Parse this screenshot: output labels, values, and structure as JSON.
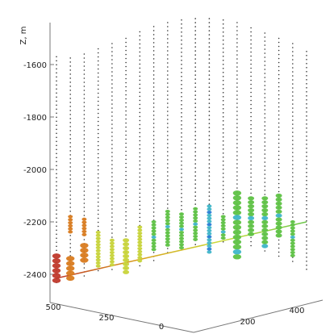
{
  "chart_data": {
    "type": "scatter",
    "dimensions": "3d",
    "zlabel": "Z, m",
    "z_ticks": [
      -2400,
      -2200,
      -2000,
      -1800,
      -1600
    ],
    "zlim": [
      -2480,
      -1420
    ],
    "left_axis_ticks": [
      500,
      250,
      0
    ],
    "right_axis_ticks": [
      200,
      400
    ],
    "grid": false,
    "legend": "none",
    "trend_line": {
      "from_z": -2415,
      "to_z": -2200,
      "colors": [
        "#c0392b",
        "#d9a01a",
        "#c9dc3a",
        "#6ac64a"
      ]
    },
    "colors": {
      "well_dots": "#333333",
      "red": "#c0392b",
      "orange": "#d97b1f",
      "yellow": "#c8d43a",
      "green": "#5ec244",
      "cyan": "#3fb6c9",
      "blue": "#2a7fd6"
    },
    "wells": [
      {
        "top": -1570,
        "bottom": -2440
      },
      {
        "top": -1575,
        "bottom": -2430
      },
      {
        "top": -1560,
        "bottom": -2420
      },
      {
        "top": -1540,
        "bottom": -2400
      },
      {
        "top": -1520,
        "bottom": -2390
      },
      {
        "top": -1500,
        "bottom": -2380
      },
      {
        "top": -1475,
        "bottom": -2370
      },
      {
        "top": -1455,
        "bottom": -2350
      },
      {
        "top": -1440,
        "bottom": -2330
      },
      {
        "top": -1430,
        "bottom": -2320
      },
      {
        "top": -1425,
        "bottom": -2300
      },
      {
        "top": -1425,
        "bottom": -2290
      },
      {
        "top": -1430,
        "bottom": -2290
      },
      {
        "top": -1440,
        "bottom": -2290
      },
      {
        "top": -1460,
        "bottom": -2300
      },
      {
        "top": -1480,
        "bottom": -2320
      },
      {
        "top": -1500,
        "bottom": -2340
      },
      {
        "top": -1520,
        "bottom": -2360
      },
      {
        "top": -1550,
        "bottom": -2390
      }
    ],
    "clusters": [
      {
        "well": 0,
        "z_from": -2330,
        "z_to": -2430,
        "color": "red",
        "size": "large"
      },
      {
        "well": 1,
        "z_from": -2180,
        "z_to": -2240,
        "color": "orange",
        "size": "small"
      },
      {
        "well": 1,
        "z_from": -2340,
        "z_to": -2420,
        "color": "orange",
        "size": "large"
      },
      {
        "well": 2,
        "z_from": -2190,
        "z_to": -2260,
        "color": "orange",
        "size": "small"
      },
      {
        "well": 2,
        "z_from": -2290,
        "z_to": -2360,
        "color": "orange",
        "size": "large"
      },
      {
        "well": 3,
        "z_from": -2240,
        "z_to": -2380,
        "color": "yellow",
        "size": "small"
      },
      {
        "well": 4,
        "z_from": -2270,
        "z_to": -2370,
        "color": "yellow",
        "size": "small"
      },
      {
        "well": 5,
        "z_from": -2270,
        "z_to": -2400,
        "color": "yellow",
        "size": "medium"
      },
      {
        "well": 6,
        "z_from": -2220,
        "z_to": -2360,
        "color": "yellow",
        "size": "small"
      },
      {
        "well": 7,
        "z_from": -2200,
        "z_to": -2310,
        "color": "green",
        "size": "small"
      },
      {
        "well": 8,
        "z_from": -2160,
        "z_to": -2290,
        "color": "green",
        "size": "small"
      },
      {
        "well": 9,
        "z_from": -2170,
        "z_to": -2300,
        "color": "green",
        "size": "small"
      },
      {
        "well": 10,
        "z_from": -2150,
        "z_to": -2270,
        "color": "green",
        "size": "small"
      },
      {
        "well": 11,
        "z_from": -2140,
        "z_to": -2320,
        "color": "cyan",
        "size": "small"
      },
      {
        "well": 12,
        "z_from": -2180,
        "z_to": -2270,
        "color": "green",
        "size": "small"
      },
      {
        "well": 13,
        "z_from": -2090,
        "z_to": -2350,
        "color": "green",
        "size": "large"
      },
      {
        "well": 14,
        "z_from": -2110,
        "z_to": -2260,
        "color": "green",
        "size": "medium"
      },
      {
        "well": 15,
        "z_from": -2110,
        "z_to": -2300,
        "color": "green",
        "size": "medium"
      },
      {
        "well": 16,
        "z_from": -2100,
        "z_to": -2260,
        "color": "green",
        "size": "medium"
      },
      {
        "well": 17,
        "z_from": -2200,
        "z_to": -2330,
        "color": "green",
        "size": "small"
      }
    ]
  }
}
